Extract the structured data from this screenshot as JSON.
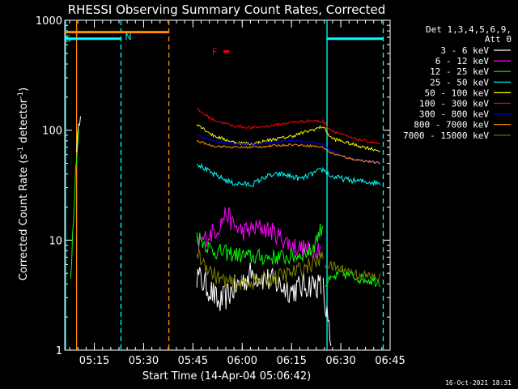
{
  "chart_data": {
    "type": "line",
    "title": "RHESSI Observing Summary Count Rates, Corrected",
    "xlabel": "Start Time (14-Apr-04 05:06:42)",
    "ylabel": "Corrected Count Rate (s⁻¹ detector⁻¹)",
    "ylabel_parts": {
      "pre": "Corrected Count Rate (s",
      "sup1": "-1",
      "mid": " detector",
      "sup2": "-1",
      "post": ")"
    },
    "y_scale": "log",
    "ylim": [
      1,
      1000
    ],
    "y_ticks": [
      {
        "value": 1,
        "label": "1"
      },
      {
        "value": 10,
        "label": "10"
      },
      {
        "value": 100,
        "label": "100"
      },
      {
        "value": 1000,
        "label": "1000"
      }
    ],
    "xlim": [
      5.1,
      6.75
    ],
    "x_ticks": [
      {
        "value": 5.25,
        "label": "05:15"
      },
      {
        "value": 5.5,
        "label": "05:30"
      },
      {
        "value": 5.75,
        "label": "05:45"
      },
      {
        "value": 6.0,
        "label": "06:00"
      },
      {
        "value": 6.25,
        "label": "06:15"
      },
      {
        "value": 6.5,
        "label": "06:30"
      },
      {
        "value": 6.75,
        "label": "06:45"
      }
    ],
    "legend_header": [
      "Det 1,3,4,5,6,9,",
      "Att 0"
    ],
    "legend_position": "right",
    "footer_date": "16-Oct-2021 18:31",
    "series": [
      {
        "name": "3 - 6 keV",
        "color": "#ffffff",
        "segments": [
          {
            "x": [
              5.16,
              5.18
            ],
            "y": [
              70,
              150
            ],
            "noise": 0.1
          },
          {
            "x": [
              5.77,
              5.85,
              5.88,
              5.95,
              6.05,
              6.15,
              6.25,
              6.35,
              6.4
            ],
            "y": [
              4.8,
              3.3,
              2.6,
              3.5,
              5,
              4.2,
              3.5,
              4,
              3.8
            ],
            "noise": 0.25
          },
          {
            "x": [
              6.41,
              6.43,
              6.45
            ],
            "y": [
              3.5,
              2,
              1
            ],
            "noise": 0.3
          }
        ]
      },
      {
        "name": "6 - 12 keV",
        "color": "#ff00ff",
        "segments": [
          {
            "x": [
              5.77,
              5.8,
              5.88,
              5.92,
              5.95,
              6.0,
              6.1,
              6.15,
              6.25,
              6.35,
              6.4
            ],
            "y": [
              9,
              10,
              13,
              18,
              14,
              12,
              13,
              12,
              9,
              8,
              9
            ],
            "noise": 0.18
          }
        ]
      },
      {
        "name": "12 - 25 keV",
        "color": "#00ff00",
        "segments": [
          {
            "x": [
              5.13,
              5.14,
              5.15,
              5.16,
              5.17
            ],
            "y": [
              4,
              10,
              25,
              60,
              100
            ],
            "noise": 0.2
          },
          {
            "x": [
              5.77,
              5.85,
              5.95,
              6.05,
              6.15,
              6.25,
              6.35,
              6.41
            ],
            "y": [
              11,
              8,
              7.5,
              7,
              7,
              7,
              8,
              14
            ],
            "noise": 0.15
          },
          {
            "x": [
              6.42,
              6.5,
              6.6,
              6.7
            ],
            "y": [
              4,
              5,
              4.5,
              4.2
            ],
            "noise": 0.1
          }
        ]
      },
      {
        "name": "25 - 50 keV",
        "color": "#00ffff",
        "segments": [
          {
            "x": [
              5.77,
              5.85,
              5.95,
              6.05,
              6.12,
              6.2,
              6.3,
              6.38,
              6.41,
              6.45,
              6.55,
              6.7
            ],
            "y": [
              50,
              40,
              33,
              32,
              38,
              40,
              36,
              42,
              44,
              38,
              35,
              33
            ],
            "noise": 0.05
          }
        ]
      },
      {
        "name": "50 - 100 keV",
        "color": "#ffff00",
        "segments": [
          {
            "x": [
              5.77,
              5.85,
              5.95,
              6.05,
              6.15,
              6.25,
              6.35,
              6.41,
              6.45,
              6.55,
              6.7
            ],
            "y": [
              115,
              90,
              78,
              75,
              82,
              88,
              100,
              108,
              85,
              75,
              65
            ],
            "noise": 0.03
          }
        ]
      },
      {
        "name": "100 - 300 keV",
        "color": "#ff0000",
        "segments": [
          {
            "x": [
              5.77,
              5.85,
              5.95,
              6.05,
              6.15,
              6.25,
              6.35,
              6.41,
              6.45,
              6.55,
              6.7
            ],
            "y": [
              155,
              125,
              110,
              105,
              110,
              118,
              122,
              120,
              100,
              85,
              75
            ],
            "noise": 0.025
          }
        ]
      },
      {
        "name": "300 - 800 keV",
        "color": "#0000ff",
        "segments": [
          {
            "x": [
              5.77,
              5.85,
              5.95,
              6.05,
              6.15,
              6.25,
              6.35,
              6.41,
              6.45,
              6.55,
              6.7
            ],
            "y": [
              90,
              80,
              76,
              75,
              78,
              80,
              78,
              74,
              65,
              55,
              50
            ],
            "noise": 0.02
          }
        ]
      },
      {
        "name": "800 - 7000 keV",
        "color": "#ff8c00",
        "segments": [
          {
            "x": [
              5.77,
              5.85,
              5.95,
              6.05,
              6.15,
              6.25,
              6.35,
              6.41,
              6.45,
              6.55,
              6.7
            ],
            "y": [
              80,
              72,
              70,
              70,
              72,
              74,
              72,
              70,
              62,
              55,
              50
            ],
            "noise": 0.02
          }
        ]
      },
      {
        "name": "7000 - 15000 keV",
        "color": "#808000",
        "segments": [
          {
            "x": [
              5.77,
              5.85,
              5.88,
              5.95,
              6.05,
              6.15,
              6.25,
              6.35,
              6.41
            ],
            "y": [
              7.5,
              5,
              4.5,
              4,
              4.2,
              4.5,
              5,
              6,
              7
            ],
            "noise": 0.15
          },
          {
            "x": [
              6.42,
              6.5,
              6.6,
              6.7
            ],
            "y": [
              6,
              5.5,
              4.8,
              4.5
            ],
            "noise": 0.1
          }
        ]
      }
    ],
    "flag_intervals": [
      {
        "label": "S",
        "color": "#00ffff",
        "y": 680,
        "x": [
          5.1,
          5.385
        ]
      },
      {
        "label": "",
        "color": "#00ffff",
        "y": 680,
        "x": [
          6.43,
          6.715
        ]
      },
      {
        "label": "",
        "color": "#ff8c00",
        "y": 780,
        "x": [
          5.1,
          5.625
        ]
      },
      {
        "label": "F",
        "color": "#ff0000",
        "y": 520,
        "x": [
          5.905,
          5.935
        ]
      }
    ],
    "vertical_markers": [
      {
        "x": 5.385,
        "color": "#00ffff",
        "style": "dashed",
        "label": "N"
      },
      {
        "x": 6.43,
        "color": "#00ffff",
        "style": "solid",
        "label": ""
      },
      {
        "x": 6.715,
        "color": "#00ffff",
        "style": "dashed",
        "label": ""
      },
      {
        "x": 5.104,
        "color": "#00ffff",
        "style": "solid",
        "label": ""
      },
      {
        "x": 5.16,
        "color": "#ff8c00",
        "style": "solid",
        "label": ""
      },
      {
        "x": 5.628,
        "color": "#ff8c00",
        "style": "dashed",
        "label": ""
      }
    ]
  }
}
